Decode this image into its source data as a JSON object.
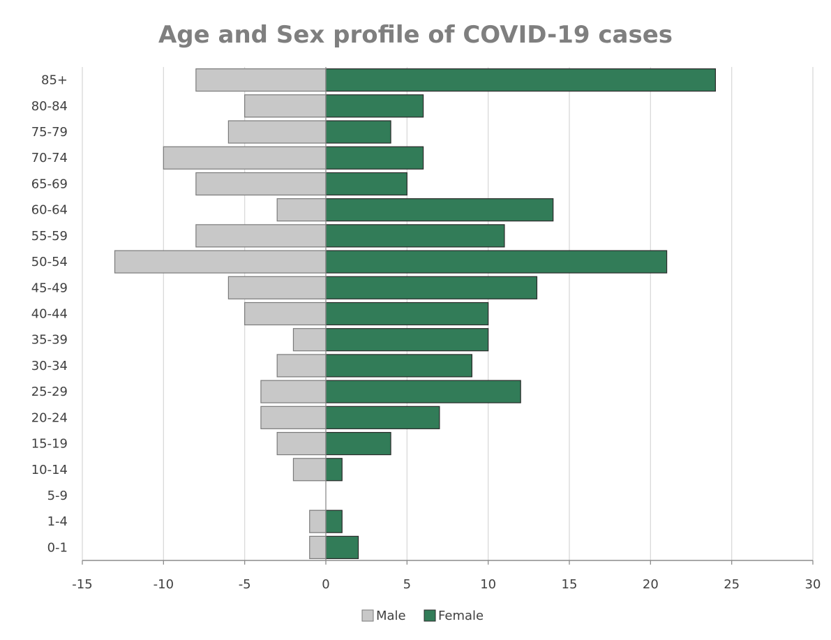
{
  "chart_data": {
    "type": "bar",
    "orientation": "horizontal",
    "title": "Age and Sex profile of COVID-19 cases",
    "xlabel": "",
    "ylabel": "",
    "xlim": [
      -15,
      30
    ],
    "xticks": [
      -15,
      -10,
      -5,
      0,
      5,
      10,
      15,
      20,
      25,
      30
    ],
    "grid": true,
    "legend_position": "bottom",
    "categories": [
      "0-1",
      "1-4",
      "5-9",
      "10-14",
      "15-19",
      "20-24",
      "25-29",
      "30-34",
      "35-39",
      "40-44",
      "45-49",
      "50-54",
      "55-59",
      "60-64",
      "65-69",
      "70-74",
      "75-79",
      "80-84",
      "85+"
    ],
    "series": [
      {
        "name": "Male",
        "color": "#c8c8c8",
        "values": [
          -1,
          -1,
          0,
          -2,
          -3,
          -4,
          -4,
          -3,
          -2,
          -5,
          -6,
          -13,
          -8,
          -3,
          -8,
          -10,
          -6,
          -5,
          -8
        ]
      },
      {
        "name": "Female",
        "color": "#327c58",
        "values": [
          2,
          1,
          0,
          1,
          4,
          7,
          12,
          9,
          10,
          10,
          13,
          21,
          11,
          14,
          5,
          6,
          4,
          6,
          24
        ]
      }
    ]
  }
}
